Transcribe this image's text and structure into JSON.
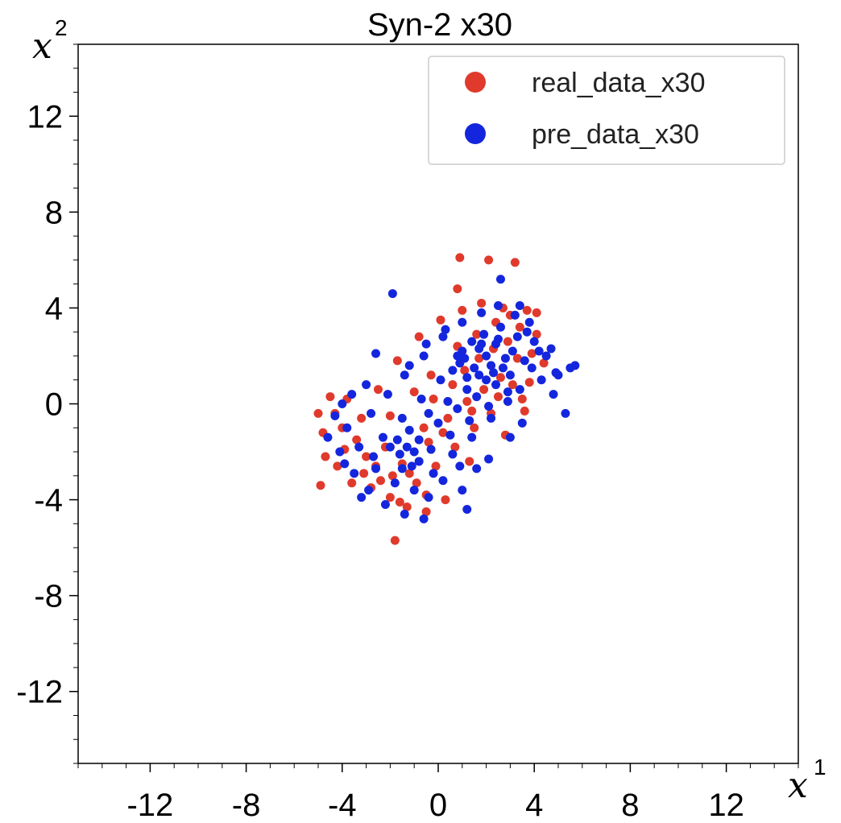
{
  "chart_data": {
    "type": "scatter",
    "title": "Syn-2 x30",
    "xlabel": {
      "var": "x",
      "sup": "1"
    },
    "ylabel": {
      "var": "x",
      "sup": "2"
    },
    "xlim": [
      -15,
      15
    ],
    "ylim": [
      -15,
      15
    ],
    "xticks": [
      -12,
      -8,
      -4,
      0,
      4,
      8,
      12
    ],
    "yticks": [
      12,
      8,
      4,
      0,
      -4,
      -8,
      -12
    ],
    "minor_tick_step": 1,
    "grid": false,
    "legend_position": "top-right",
    "series": [
      {
        "name": "real_data_x30",
        "color": "#e03a2c",
        "points": [
          [
            0.9,
            6.1
          ],
          [
            2.1,
            6.0
          ],
          [
            3.2,
            5.9
          ],
          [
            0.8,
            4.8
          ],
          [
            -1.8,
            -5.7
          ],
          [
            -5.0,
            -0.4
          ],
          [
            -4.5,
            0.3
          ],
          [
            -4.8,
            -1.2
          ],
          [
            -4.7,
            -2.2
          ],
          [
            -4.9,
            -3.4
          ],
          [
            -4.2,
            -2.6
          ],
          [
            -4.0,
            -1.0
          ],
          [
            -3.6,
            -3.3
          ],
          [
            -3.8,
            0.2
          ],
          [
            3.7,
            3.9
          ],
          [
            4.1,
            3.8
          ],
          [
            4.1,
            2.9
          ],
          [
            4.4,
            1.7
          ],
          [
            3.8,
            0.9
          ],
          [
            3.6,
            -0.3
          ],
          [
            2.8,
            -1.3
          ],
          [
            1.3,
            -2.4
          ],
          [
            0.3,
            -4.0
          ],
          [
            -0.5,
            -4.5
          ],
          [
            -1.3,
            -4.3
          ],
          [
            -2.0,
            -3.9
          ],
          [
            -2.8,
            -3.5
          ],
          [
            -3.0,
            -2.2
          ],
          [
            -1.5,
            -2.5
          ],
          [
            -0.6,
            -1.0
          ],
          [
            -0.2,
            0.2
          ],
          [
            0.6,
            0.8
          ],
          [
            1.1,
            1.4
          ],
          [
            1.7,
            1.9
          ],
          [
            2.3,
            2.3
          ],
          [
            2.9,
            2.6
          ],
          [
            3.3,
            1.9
          ],
          [
            2.6,
            1.1
          ],
          [
            1.9,
            0.6
          ],
          [
            1.2,
            0.1
          ],
          [
            0.4,
            -0.6
          ],
          [
            -0.4,
            -1.6
          ],
          [
            -1.2,
            -2.9
          ],
          [
            -2.2,
            -1.8
          ],
          [
            -3.2,
            -0.6
          ],
          [
            -2.5,
            0.6
          ],
          [
            -1.7,
            1.8
          ],
          [
            -0.8,
            2.8
          ],
          [
            0.1,
            3.5
          ],
          [
            1.0,
            3.9
          ],
          [
            1.8,
            4.2
          ],
          [
            2.7,
            4.0
          ],
          [
            3.4,
            3.2
          ],
          [
            3.9,
            2.1
          ],
          [
            3.5,
            0.2
          ],
          [
            2.2,
            -0.4
          ],
          [
            1.5,
            -1.0
          ],
          [
            0.7,
            -1.8
          ],
          [
            -0.1,
            -2.6
          ],
          [
            -0.9,
            -3.3
          ],
          [
            -1.9,
            -3.0
          ],
          [
            -2.6,
            -2.6
          ],
          [
            -3.4,
            -1.5
          ],
          [
            -0.3,
            1.2
          ],
          [
            0.8,
            2.4
          ],
          [
            1.6,
            2.9
          ],
          [
            2.4,
            3.4
          ],
          [
            3.0,
            3.7
          ],
          [
            -1.0,
            0.5
          ],
          [
            -2.0,
            -0.5
          ],
          [
            0.2,
            -1.2
          ],
          [
            1.4,
            -0.3
          ],
          [
            2.5,
            0.3
          ],
          [
            3.1,
            0.8
          ],
          [
            -0.5,
            -3.8
          ],
          [
            -1.6,
            -4.1
          ],
          [
            -2.4,
            -3.2
          ],
          [
            -3.1,
            -2.9
          ],
          [
            -3.9,
            -1.9
          ],
          [
            -4.3,
            -0.4
          ]
        ]
      },
      {
        "name": "pre_data_x30",
        "color": "#1426dd",
        "points": [
          [
            2.6,
            5.2
          ],
          [
            -1.9,
            4.6
          ],
          [
            -2.6,
            2.1
          ],
          [
            -3.0,
            0.8
          ],
          [
            -4.0,
            0.0
          ],
          [
            -4.3,
            -0.5
          ],
          [
            -4.6,
            -1.4
          ],
          [
            -4.1,
            -2.0
          ],
          [
            -3.5,
            -2.9
          ],
          [
            -3.2,
            -3.9
          ],
          [
            -2.2,
            -4.2
          ],
          [
            -1.4,
            -4.6
          ],
          [
            -0.6,
            -4.8
          ],
          [
            1.2,
            -4.4
          ],
          [
            1.0,
            -3.6
          ],
          [
            1.6,
            -2.7
          ],
          [
            2.1,
            -2.3
          ],
          [
            3.0,
            -1.4
          ],
          [
            3.5,
            -0.8
          ],
          [
            4.8,
            0.4
          ],
          [
            5.3,
            -0.4
          ],
          [
            5.0,
            1.2
          ],
          [
            5.7,
            1.6
          ],
          [
            5.5,
            1.5
          ],
          [
            4.9,
            1.3
          ],
          [
            4.7,
            2.3
          ],
          [
            4.2,
            2.2
          ],
          [
            3.9,
            1.5
          ],
          [
            3.4,
            0.6
          ],
          [
            2.9,
            0.1
          ],
          [
            2.2,
            -0.6
          ],
          [
            1.4,
            -1.4
          ],
          [
            0.6,
            -2.1
          ],
          [
            -0.2,
            -2.9
          ],
          [
            -1.0,
            -3.6
          ],
          [
            -1.8,
            -3.3
          ],
          [
            -2.6,
            -2.7
          ],
          [
            -3.3,
            -1.8
          ],
          [
            -3.8,
            -1.0
          ],
          [
            -2.8,
            -0.4
          ],
          [
            -2.1,
            0.4
          ],
          [
            -1.4,
            1.2
          ],
          [
            -0.6,
            2.0
          ],
          [
            0.2,
            2.8
          ],
          [
            1.0,
            3.4
          ],
          [
            1.8,
            3.8
          ],
          [
            2.5,
            4.1
          ],
          [
            3.2,
            3.7
          ],
          [
            3.7,
            3.0
          ],
          [
            4.0,
            2.6
          ],
          [
            3.6,
            1.8
          ],
          [
            3.0,
            1.2
          ],
          [
            2.4,
            0.8
          ],
          [
            1.6,
            0.3
          ],
          [
            0.8,
            -0.2
          ],
          [
            0.0,
            -0.8
          ],
          [
            -0.8,
            -1.5
          ],
          [
            -1.6,
            -2.1
          ],
          [
            -2.3,
            -1.4
          ],
          [
            -1.5,
            -0.6
          ],
          [
            -0.7,
            0.2
          ],
          [
            0.1,
            1.0
          ],
          [
            0.9,
            1.7
          ],
          [
            1.7,
            2.3
          ],
          [
            2.5,
            2.7
          ],
          [
            3.1,
            2.2
          ],
          [
            2.7,
            1.5
          ],
          [
            2.0,
            1.0
          ],
          [
            1.2,
            0.6
          ],
          [
            0.4,
            0.1
          ],
          [
            -0.4,
            -0.4
          ],
          [
            -1.2,
            -1.1
          ],
          [
            -2.0,
            -1.8
          ],
          [
            -2.7,
            -2.2
          ],
          [
            -1.1,
            -2.6
          ],
          [
            -0.3,
            -1.9
          ],
          [
            0.5,
            -1.3
          ],
          [
            1.3,
            -0.7
          ],
          [
            2.1,
            -0.1
          ],
          [
            2.9,
            0.5
          ],
          [
            1.5,
            1.5
          ],
          [
            2.0,
            2.0
          ],
          [
            1.0,
            2.2
          ],
          [
            2.2,
            1.6
          ],
          [
            1.4,
            2.6
          ],
          [
            0.6,
            1.4
          ],
          [
            2.8,
            1.9
          ],
          [
            1.9,
            2.9
          ],
          [
            1.2,
            1.1
          ],
          [
            2.4,
            2.5
          ],
          [
            -1.7,
            -1.5
          ],
          [
            -1.0,
            -2.0
          ],
          [
            -1.3,
            -1.8
          ],
          [
            -0.8,
            -2.4
          ],
          [
            -1.5,
            -2.7
          ],
          [
            1.7,
            1.2
          ],
          [
            1.1,
            1.9
          ],
          [
            2.3,
            1.3
          ],
          [
            1.8,
            2.5
          ],
          [
            0.8,
            2.0
          ],
          [
            2.6,
            3.2
          ],
          [
            3.3,
            2.8
          ],
          [
            0.3,
            3.1
          ],
          [
            -0.5,
            2.5
          ],
          [
            -1.2,
            1.6
          ],
          [
            4.3,
            1.0
          ],
          [
            4.5,
            2.0
          ],
          [
            3.8,
            3.4
          ],
          [
            3.4,
            4.1
          ],
          [
            -3.6,
            0.4
          ],
          [
            0.2,
            -3.2
          ],
          [
            0.9,
            -2.6
          ],
          [
            -0.4,
            -3.9
          ],
          [
            -2.9,
            -3.6
          ],
          [
            -3.9,
            -2.5
          ]
        ]
      }
    ]
  }
}
